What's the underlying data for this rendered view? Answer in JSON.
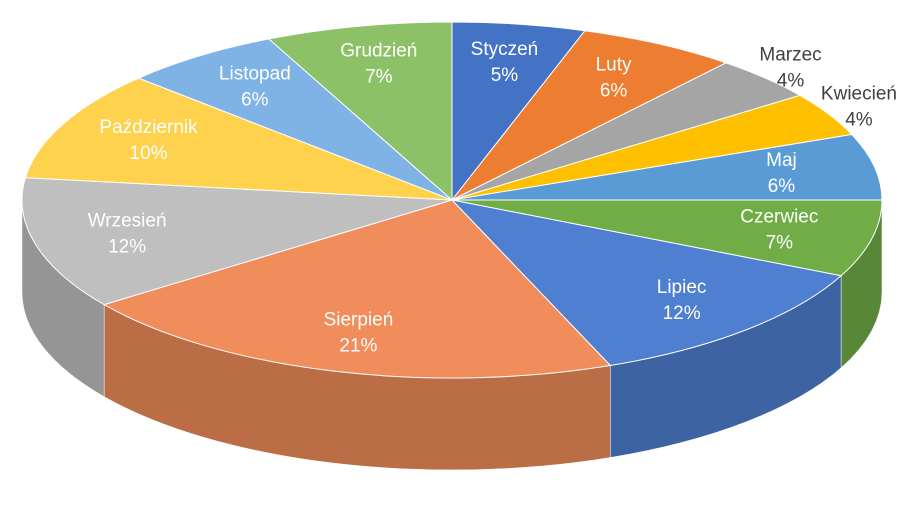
{
  "chart_data": {
    "type": "pie",
    "categories": [
      "Styczeń",
      "Luty",
      "Marzec",
      "Kwiecień",
      "Maj",
      "Czerwiec",
      "Lipiec",
      "Sierpień",
      "Wrzesień",
      "Październik",
      "Listopad",
      "Grudzień"
    ],
    "values": [
      5,
      6,
      4,
      4,
      6,
      7,
      12,
      21,
      12,
      10,
      6,
      7
    ],
    "value_labels": [
      "5%",
      "6%",
      "4%",
      "4%",
      "6%",
      "7%",
      "12%",
      "21%",
      "12%",
      "10%",
      "6%",
      "7%"
    ],
    "colors": [
      "#4472c4",
      "#ed7d31",
      "#a5a5a5",
      "#ffc000",
      "#5b9bd5",
      "#70ad47",
      "#4f7fd0",
      "#f08d5a",
      "#bfbfbf",
      "#ffd24d",
      "#7fb2e5",
      "#8cc168"
    ]
  }
}
